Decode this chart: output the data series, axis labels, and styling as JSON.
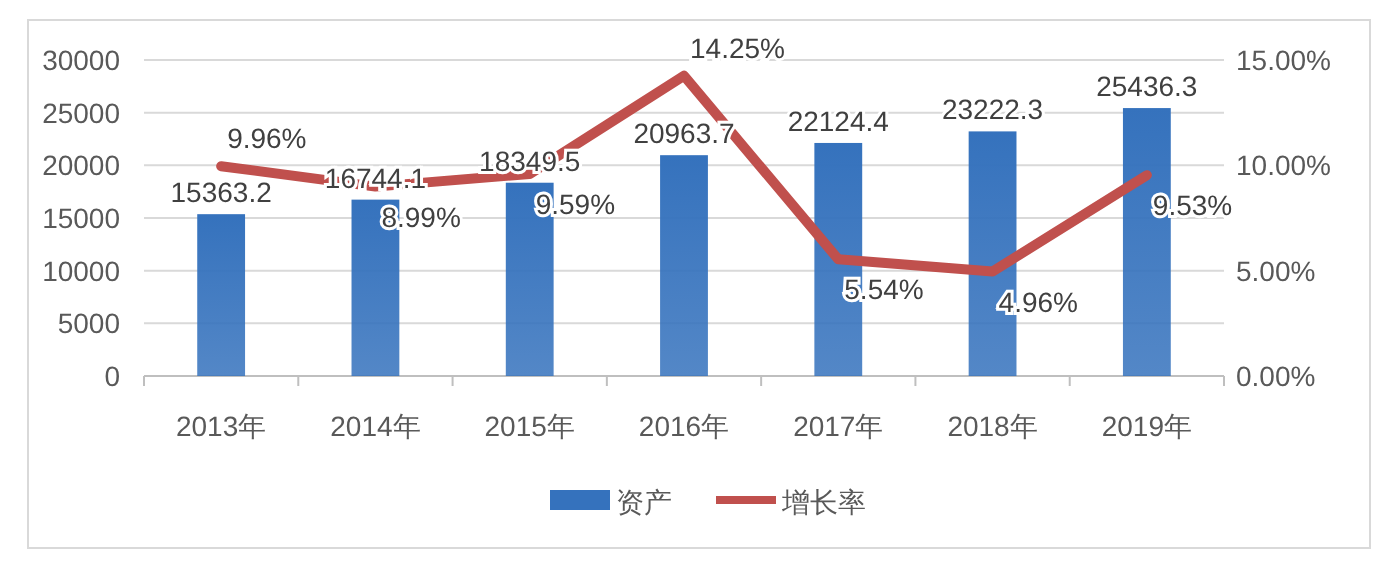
{
  "chart_data": {
    "type": "bar",
    "categories": [
      "2013年",
      "2014年",
      "2015年",
      "2016年",
      "2017年",
      "2018年",
      "2019年"
    ],
    "series": [
      {
        "name": "资产",
        "color": "#3572bd",
        "values": [
          15363.2,
          16744.1,
          18349.5,
          20963.7,
          22124.4,
          23222.3,
          25436.3
        ]
      },
      {
        "name": "增长率",
        "type": "line",
        "axis": "y2",
        "color": "#c0504d",
        "values": [
          9.96,
          8.99,
          9.59,
          14.25,
          5.54,
          4.96,
          9.53
        ],
        "value_labels": [
          "9.96%",
          "8.99%",
          "9.59%",
          "14.25%",
          "5.54%",
          "4.96%",
          "9.53%"
        ]
      }
    ],
    "ylim": [
      0,
      30000
    ],
    "yticks": [
      0,
      5000,
      10000,
      15000,
      20000,
      25000,
      30000
    ],
    "y2lim": [
      0,
      15
    ],
    "y2ticks": [
      {
        "value": 0,
        "label": "0.00%"
      },
      {
        "value": 5,
        "label": "5.00%"
      },
      {
        "value": 10,
        "label": "10.00%"
      },
      {
        "value": 15,
        "label": "15.00%"
      }
    ],
    "grid": "y",
    "legend": "bottom",
    "data_labels": true,
    "marker": "none",
    "line_style": "solid"
  }
}
